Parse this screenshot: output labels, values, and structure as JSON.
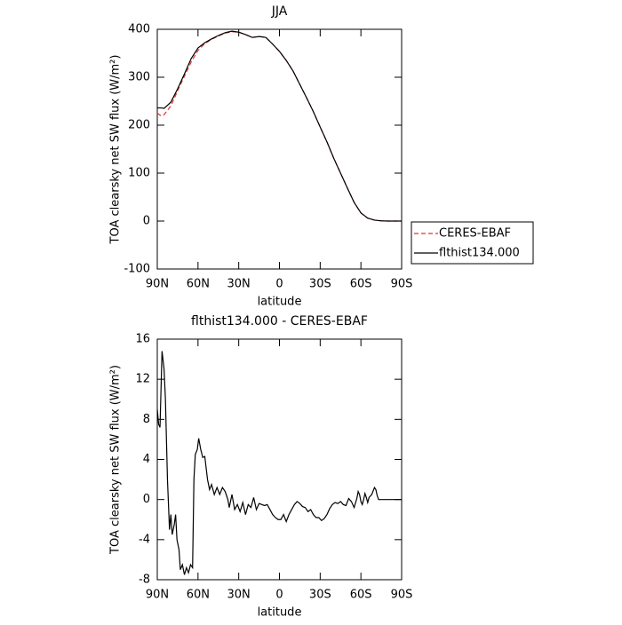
{
  "chart_data": [
    {
      "type": "line",
      "title": "JJA",
      "xlabel": "latitude",
      "ylabel": "TOA clearsky net SW flux (W/m²)",
      "x": [
        90,
        87,
        85,
        80,
        75,
        70,
        65,
        60,
        55,
        50,
        45,
        40,
        35,
        30,
        25,
        20,
        15,
        10,
        5,
        0,
        -5,
        -10,
        -15,
        -20,
        -25,
        -30,
        -35,
        -40,
        -45,
        -50,
        -55,
        -60,
        -65,
        -70,
        -75,
        -80,
        -85,
        -90
      ],
      "series": [
        {
          "name": "CERES-EBAF",
          "color": "#e03030",
          "dash": "dashed",
          "values": [
            225,
            219,
            222,
            240,
            272,
            302,
            332,
            356,
            370,
            379,
            386,
            392,
            395,
            394,
            389,
            383,
            385,
            383,
            369,
            354,
            335,
            313,
            285,
            257,
            228,
            196,
            165,
            131,
            100,
            69,
            39,
            17,
            6,
            2,
            0.5,
            0,
            0,
            0
          ]
        },
        {
          "name": "flthist134.000",
          "color": "#000000",
          "dash": "solid",
          "values": [
            236,
            236,
            235,
            248,
            276,
            307,
            339,
            361,
            372,
            380,
            387,
            393,
            396,
            394,
            389,
            383,
            385,
            383,
            369,
            354,
            335,
            313,
            285,
            257,
            228,
            196,
            165,
            131,
            100,
            69,
            39,
            17,
            6,
            2,
            0.5,
            0,
            0,
            0
          ]
        }
      ],
      "xlim": [
        90,
        -90
      ],
      "xticks": [
        {
          "value": 90,
          "label": "90N"
        },
        {
          "value": 60,
          "label": "60N"
        },
        {
          "value": 30,
          "label": "30N"
        },
        0,
        {
          "value": -30,
          "label": "30S"
        },
        {
          "value": -60,
          "label": "60S"
        },
        {
          "value": -90,
          "label": "90S"
        }
      ],
      "ylim": [
        -100,
        400
      ],
      "yticks": [
        -100,
        0,
        100,
        200,
        300,
        400
      ],
      "legend": "right"
    },
    {
      "type": "line",
      "title": "flthist134.000 - CERES-EBAF",
      "xlabel": "latitude",
      "ylabel": "TOA clearsky net SW flux (W/m²)",
      "x": [
        90,
        89,
        88,
        86.5,
        85,
        84,
        82.5,
        81,
        80,
        79,
        77.5,
        76.5,
        75.5,
        74,
        73,
        71.5,
        70,
        68.5,
        67,
        65.5,
        64,
        63,
        62,
        60.5,
        59.5,
        58,
        56.5,
        55,
        53,
        51.5,
        50,
        48,
        46,
        44,
        42,
        40,
        38,
        37,
        35,
        33,
        31,
        29,
        27,
        25,
        23,
        21,
        19,
        17,
        15,
        13,
        11,
        9,
        7,
        5,
        3,
        1,
        -1,
        -3,
        -5,
        -7,
        -9,
        -11,
        -13,
        -15,
        -17,
        -19,
        -21,
        -23,
        -25,
        -27,
        -29,
        -31,
        -33,
        -35,
        -37,
        -39,
        -41,
        -43,
        -45,
        -47,
        -49,
        -51,
        -53,
        -55,
        -57,
        -58,
        -59,
        -60,
        -61,
        -62,
        -63,
        -64,
        -65,
        -66,
        -68,
        -70,
        -71,
        -72,
        -73,
        -74,
        -80,
        -90
      ],
      "series": [
        {
          "name": "flthist134.000 - CERES-EBAF",
          "color": "#000000",
          "dash": "solid",
          "values": [
            9,
            7.5,
            7.2,
            14.8,
            13,
            10,
            2,
            -3,
            -1.5,
            -3.5,
            -2.5,
            -1.5,
            -4,
            -5,
            -7,
            -6.5,
            -7.5,
            -6.8,
            -7.3,
            -6.5,
            -6.8,
            2,
            4.5,
            5,
            6.1,
            5,
            4.2,
            4.3,
            2,
            1,
            1.5,
            0.5,
            1.2,
            0.5,
            1.2,
            0.8,
            0,
            -0.8,
            0.5,
            -1,
            -0.5,
            -1.2,
            -0.3,
            -1.5,
            -0.5,
            -0.8,
            0.2,
            -1,
            -0.4,
            -0.5,
            -0.6,
            -0.5,
            -1,
            -1.5,
            -1.8,
            -2,
            -2,
            -1.5,
            -2.2,
            -1.5,
            -1,
            -0.5,
            -0.2,
            -0.4,
            -0.7,
            -0.8,
            -1.2,
            -1,
            -1.5,
            -1.8,
            -1.8,
            -2.1,
            -1.9,
            -1.5,
            -0.9,
            -0.5,
            -0.3,
            -0.4,
            -0.2,
            -0.5,
            -0.6,
            0.1,
            -0.2,
            -0.8,
            0.1,
            0.8,
            0.5,
            -0.2,
            -0.5,
            0,
            0.6,
            0.2,
            -0.3,
            0.2,
            0.5,
            1.2,
            1,
            0.4,
            0,
            0,
            0,
            0
          ]
        }
      ],
      "xlim": [
        90,
        -90
      ],
      "xticks": [
        {
          "value": 90,
          "label": "90N"
        },
        {
          "value": 60,
          "label": "60N"
        },
        {
          "value": 30,
          "label": "30N"
        },
        0,
        {
          "value": -30,
          "label": "30S"
        },
        {
          "value": -60,
          "label": "60S"
        },
        {
          "value": -90,
          "label": "90S"
        }
      ],
      "ylim": [
        -8,
        16
      ],
      "yticks": [
        -8,
        -4,
        0,
        4,
        8,
        12,
        16
      ]
    }
  ]
}
